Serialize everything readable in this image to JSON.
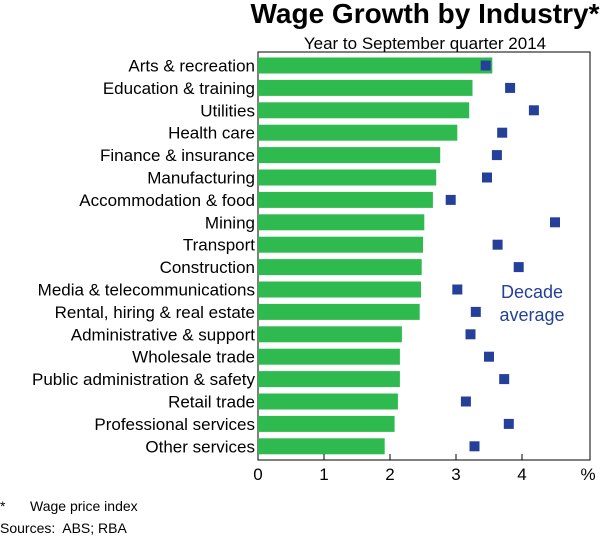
{
  "chart_data": {
    "type": "bar",
    "orientation": "horizontal",
    "title": "Wage Growth by Industry*",
    "subtitle": "Year to September quarter 2014",
    "xlabel": "",
    "ylabel": "",
    "x_unit": "%",
    "xlim": [
      0,
      5
    ],
    "xticks": [
      "0",
      "1",
      "2",
      "3",
      "4"
    ],
    "categories": [
      "Arts & recreation",
      "Education & training",
      "Utilities",
      "Health care",
      "Finance & insurance",
      "Manufacturing",
      "Accommodation & food",
      "Mining",
      "Transport",
      "Construction",
      "Media & telecommunications",
      "Rental, hiring & real estate",
      "Administrative & support",
      "Wholesale trade",
      "Public administration & safety",
      "Retail trade",
      "Professional services",
      "Other services"
    ],
    "series": [
      {
        "name": "",
        "kind": "bar",
        "color": "#2fba4f",
        "values": [
          3.55,
          3.25,
          3.2,
          3.02,
          2.76,
          2.7,
          2.65,
          2.52,
          2.5,
          2.48,
          2.47,
          2.45,
          2.18,
          2.15,
          2.15,
          2.12,
          2.07,
          1.92
        ]
      },
      {
        "name": "Decade average",
        "kind": "marker",
        "color": "#24409a",
        "values": [
          3.45,
          3.82,
          4.18,
          3.7,
          3.62,
          3.47,
          2.92,
          4.5,
          3.63,
          3.95,
          3.02,
          3.3,
          3.22,
          3.5,
          3.73,
          3.15,
          3.8,
          3.28
        ]
      }
    ],
    "legend_label_lines": [
      "Decade",
      "average"
    ],
    "legend_placement": "right-middle, inside plot",
    "grid": false,
    "footnote_marker": "*",
    "footnote_text": "Wage price index",
    "sources": "Sources:  ABS; RBA"
  }
}
